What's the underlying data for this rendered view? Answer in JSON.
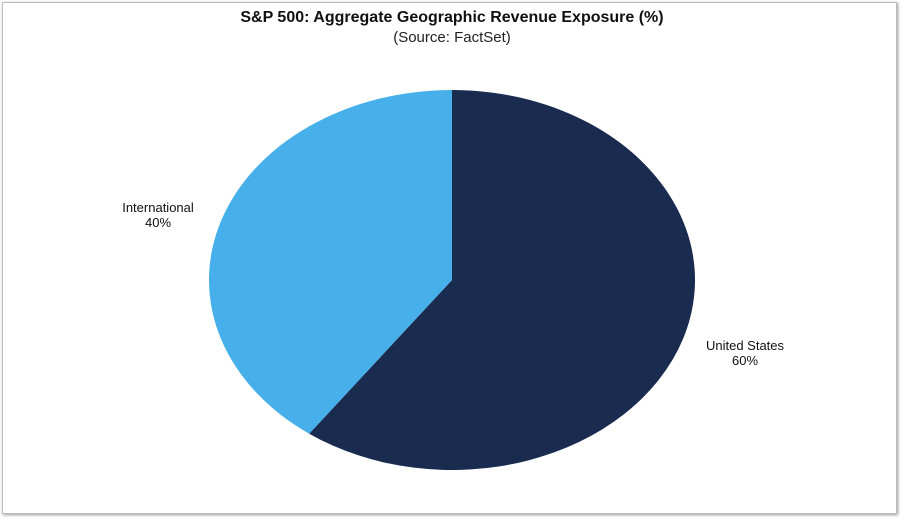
{
  "chart_data": {
    "type": "pie",
    "title": "S&P 500: Aggregate Geographic Revenue Exposure (%)",
    "subtitle": "(Source: FactSet)",
    "slices": [
      {
        "label": "United States",
        "value": 60,
        "value_label": "60%",
        "color": "#1a2b50"
      },
      {
        "label": "International",
        "value": 40,
        "value_label": "40%",
        "color": "#47b0ea"
      }
    ],
    "start_angle": "12 o'clock",
    "direction": "clockwise",
    "legend": "none"
  }
}
